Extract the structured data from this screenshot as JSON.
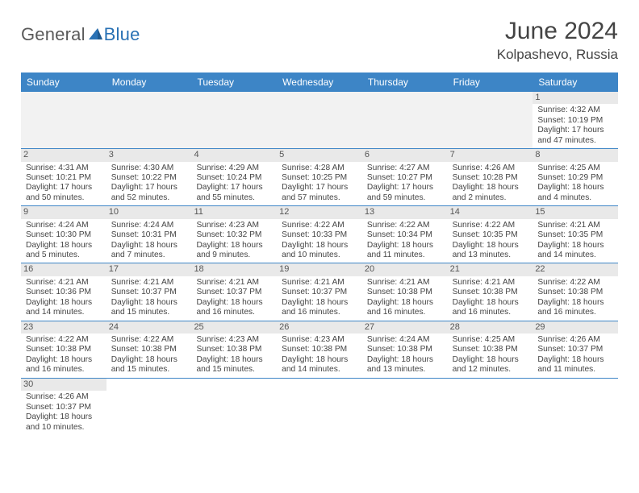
{
  "brand": {
    "name_part1": "General",
    "name_part2": "Blue"
  },
  "header": {
    "month_title": "June 2024",
    "location": "Kolpashevo, Russia"
  },
  "weekdays": [
    "Sunday",
    "Monday",
    "Tuesday",
    "Wednesday",
    "Thursday",
    "Friday",
    "Saturday"
  ],
  "colors": {
    "header_bar": "#3d85c6",
    "daynum_bg": "#e9e9e9",
    "blank_bg": "#f2f2f2",
    "divider": "#3d85c6"
  },
  "weeks": [
    [
      {
        "blank": true
      },
      {
        "blank": true
      },
      {
        "blank": true
      },
      {
        "blank": true
      },
      {
        "blank": true
      },
      {
        "blank": true
      },
      {
        "day": "1",
        "sunrise": "Sunrise: 4:32 AM",
        "sunset": "Sunset: 10:19 PM",
        "daylight1": "Daylight: 17 hours",
        "daylight2": "and 47 minutes."
      }
    ],
    [
      {
        "day": "2",
        "sunrise": "Sunrise: 4:31 AM",
        "sunset": "Sunset: 10:21 PM",
        "daylight1": "Daylight: 17 hours",
        "daylight2": "and 50 minutes."
      },
      {
        "day": "3",
        "sunrise": "Sunrise: 4:30 AM",
        "sunset": "Sunset: 10:22 PM",
        "daylight1": "Daylight: 17 hours",
        "daylight2": "and 52 minutes."
      },
      {
        "day": "4",
        "sunrise": "Sunrise: 4:29 AM",
        "sunset": "Sunset: 10:24 PM",
        "daylight1": "Daylight: 17 hours",
        "daylight2": "and 55 minutes."
      },
      {
        "day": "5",
        "sunrise": "Sunrise: 4:28 AM",
        "sunset": "Sunset: 10:25 PM",
        "daylight1": "Daylight: 17 hours",
        "daylight2": "and 57 minutes."
      },
      {
        "day": "6",
        "sunrise": "Sunrise: 4:27 AM",
        "sunset": "Sunset: 10:27 PM",
        "daylight1": "Daylight: 17 hours",
        "daylight2": "and 59 minutes."
      },
      {
        "day": "7",
        "sunrise": "Sunrise: 4:26 AM",
        "sunset": "Sunset: 10:28 PM",
        "daylight1": "Daylight: 18 hours",
        "daylight2": "and 2 minutes."
      },
      {
        "day": "8",
        "sunrise": "Sunrise: 4:25 AM",
        "sunset": "Sunset: 10:29 PM",
        "daylight1": "Daylight: 18 hours",
        "daylight2": "and 4 minutes."
      }
    ],
    [
      {
        "day": "9",
        "sunrise": "Sunrise: 4:24 AM",
        "sunset": "Sunset: 10:30 PM",
        "daylight1": "Daylight: 18 hours",
        "daylight2": "and 5 minutes."
      },
      {
        "day": "10",
        "sunrise": "Sunrise: 4:24 AM",
        "sunset": "Sunset: 10:31 PM",
        "daylight1": "Daylight: 18 hours",
        "daylight2": "and 7 minutes."
      },
      {
        "day": "11",
        "sunrise": "Sunrise: 4:23 AM",
        "sunset": "Sunset: 10:32 PM",
        "daylight1": "Daylight: 18 hours",
        "daylight2": "and 9 minutes."
      },
      {
        "day": "12",
        "sunrise": "Sunrise: 4:22 AM",
        "sunset": "Sunset: 10:33 PM",
        "daylight1": "Daylight: 18 hours",
        "daylight2": "and 10 minutes."
      },
      {
        "day": "13",
        "sunrise": "Sunrise: 4:22 AM",
        "sunset": "Sunset: 10:34 PM",
        "daylight1": "Daylight: 18 hours",
        "daylight2": "and 11 minutes."
      },
      {
        "day": "14",
        "sunrise": "Sunrise: 4:22 AM",
        "sunset": "Sunset: 10:35 PM",
        "daylight1": "Daylight: 18 hours",
        "daylight2": "and 13 minutes."
      },
      {
        "day": "15",
        "sunrise": "Sunrise: 4:21 AM",
        "sunset": "Sunset: 10:35 PM",
        "daylight1": "Daylight: 18 hours",
        "daylight2": "and 14 minutes."
      }
    ],
    [
      {
        "day": "16",
        "sunrise": "Sunrise: 4:21 AM",
        "sunset": "Sunset: 10:36 PM",
        "daylight1": "Daylight: 18 hours",
        "daylight2": "and 14 minutes."
      },
      {
        "day": "17",
        "sunrise": "Sunrise: 4:21 AM",
        "sunset": "Sunset: 10:37 PM",
        "daylight1": "Daylight: 18 hours",
        "daylight2": "and 15 minutes."
      },
      {
        "day": "18",
        "sunrise": "Sunrise: 4:21 AM",
        "sunset": "Sunset: 10:37 PM",
        "daylight1": "Daylight: 18 hours",
        "daylight2": "and 16 minutes."
      },
      {
        "day": "19",
        "sunrise": "Sunrise: 4:21 AM",
        "sunset": "Sunset: 10:37 PM",
        "daylight1": "Daylight: 18 hours",
        "daylight2": "and 16 minutes."
      },
      {
        "day": "20",
        "sunrise": "Sunrise: 4:21 AM",
        "sunset": "Sunset: 10:38 PM",
        "daylight1": "Daylight: 18 hours",
        "daylight2": "and 16 minutes."
      },
      {
        "day": "21",
        "sunrise": "Sunrise: 4:21 AM",
        "sunset": "Sunset: 10:38 PM",
        "daylight1": "Daylight: 18 hours",
        "daylight2": "and 16 minutes."
      },
      {
        "day": "22",
        "sunrise": "Sunrise: 4:22 AM",
        "sunset": "Sunset: 10:38 PM",
        "daylight1": "Daylight: 18 hours",
        "daylight2": "and 16 minutes."
      }
    ],
    [
      {
        "day": "23",
        "sunrise": "Sunrise: 4:22 AM",
        "sunset": "Sunset: 10:38 PM",
        "daylight1": "Daylight: 18 hours",
        "daylight2": "and 16 minutes."
      },
      {
        "day": "24",
        "sunrise": "Sunrise: 4:22 AM",
        "sunset": "Sunset: 10:38 PM",
        "daylight1": "Daylight: 18 hours",
        "daylight2": "and 15 minutes."
      },
      {
        "day": "25",
        "sunrise": "Sunrise: 4:23 AM",
        "sunset": "Sunset: 10:38 PM",
        "daylight1": "Daylight: 18 hours",
        "daylight2": "and 15 minutes."
      },
      {
        "day": "26",
        "sunrise": "Sunrise: 4:23 AM",
        "sunset": "Sunset: 10:38 PM",
        "daylight1": "Daylight: 18 hours",
        "daylight2": "and 14 minutes."
      },
      {
        "day": "27",
        "sunrise": "Sunrise: 4:24 AM",
        "sunset": "Sunset: 10:38 PM",
        "daylight1": "Daylight: 18 hours",
        "daylight2": "and 13 minutes."
      },
      {
        "day": "28",
        "sunrise": "Sunrise: 4:25 AM",
        "sunset": "Sunset: 10:38 PM",
        "daylight1": "Daylight: 18 hours",
        "daylight2": "and 12 minutes."
      },
      {
        "day": "29",
        "sunrise": "Sunrise: 4:26 AM",
        "sunset": "Sunset: 10:37 PM",
        "daylight1": "Daylight: 18 hours",
        "daylight2": "and 11 minutes."
      }
    ],
    [
      {
        "day": "30",
        "sunrise": "Sunrise: 4:26 AM",
        "sunset": "Sunset: 10:37 PM",
        "daylight1": "Daylight: 18 hours",
        "daylight2": "and 10 minutes."
      },
      {
        "blank": true
      },
      {
        "blank": true
      },
      {
        "blank": true
      },
      {
        "blank": true
      },
      {
        "blank": true
      },
      {
        "blank": true
      }
    ]
  ]
}
